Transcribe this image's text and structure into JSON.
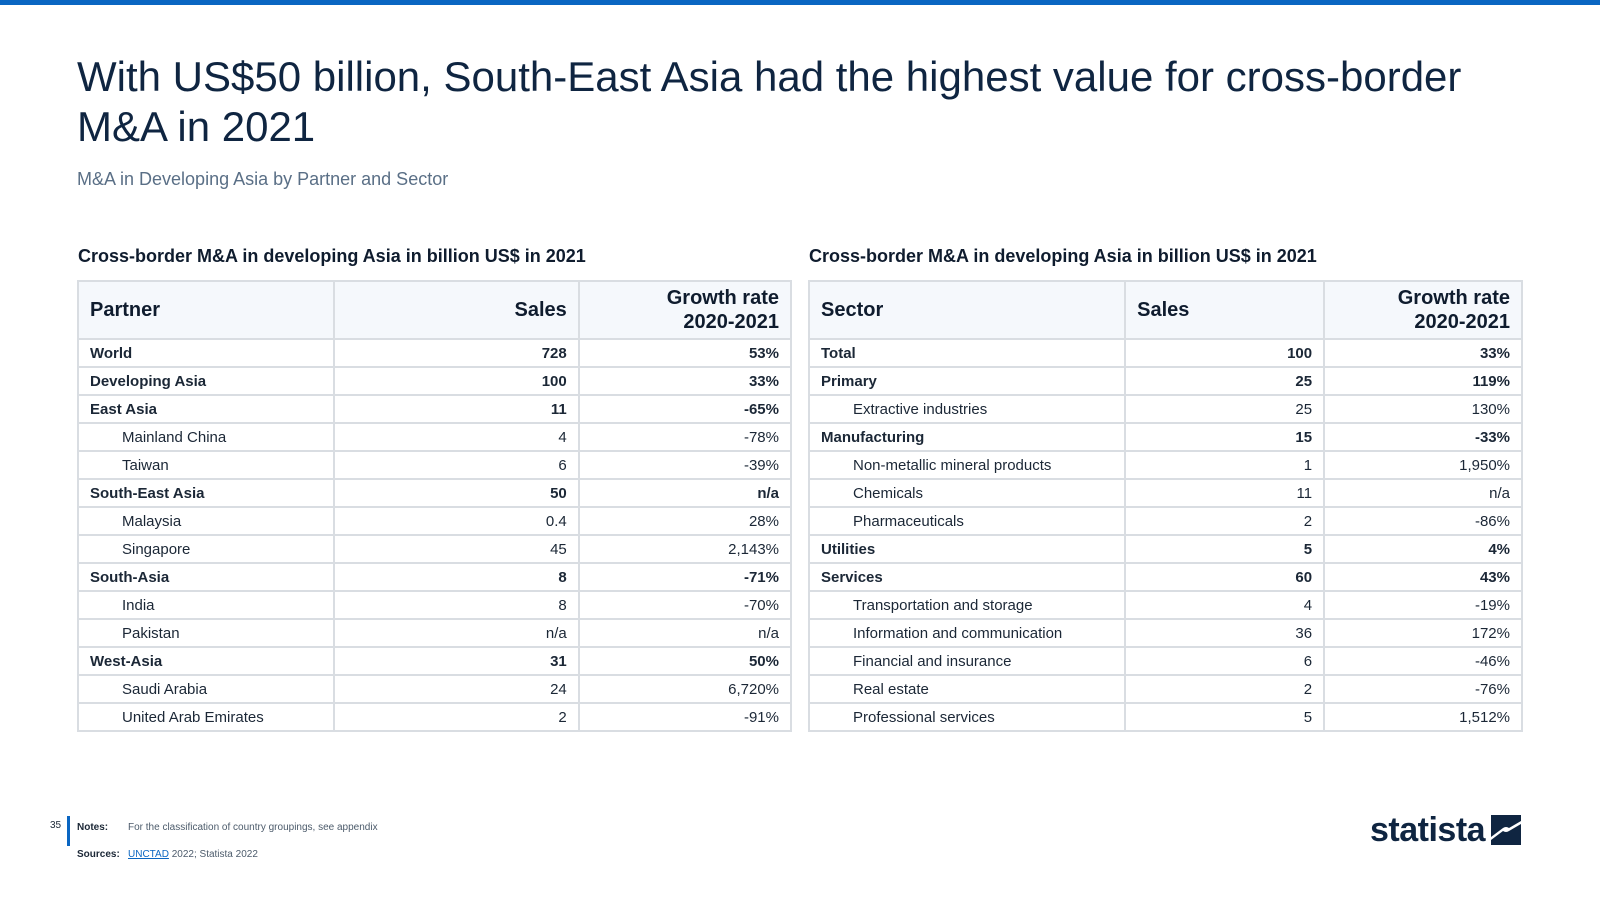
{
  "title": "With US$50 billion, South-East Asia had the highest value for cross-border M&A in 2021",
  "subtitle": "M&A in Developing Asia by Partner and Sector",
  "colors": {
    "accent": "#0a66c2",
    "header_bg": "#f5f8fc",
    "border": "#d9dde2",
    "text": "#0f1c2e"
  },
  "partner_table": {
    "heading": "Cross-border M&A in developing Asia in billion US$ in 2021",
    "headers": [
      "Partner",
      "Sales",
      "Growth rate\n2020-2021"
    ],
    "rows": [
      {
        "name": "World",
        "sales": "728",
        "growth": "53%",
        "bold": true
      },
      {
        "name": "Developing Asia",
        "sales": "100",
        "growth": "33%",
        "bold": true
      },
      {
        "name": "East Asia",
        "sales": "11",
        "growth": "-65%",
        "bold": true
      },
      {
        "name": "Mainland China",
        "sales": "4",
        "growth": "-78%",
        "bold": false
      },
      {
        "name": "Taiwan",
        "sales": "6",
        "growth": "-39%",
        "bold": false
      },
      {
        "name": "South-East Asia",
        "sales": "50",
        "growth": "n/a",
        "bold": true
      },
      {
        "name": "Malaysia",
        "sales": "0.4",
        "growth": "28%",
        "bold": false
      },
      {
        "name": "Singapore",
        "sales": "45",
        "growth": "2,143%",
        "bold": false
      },
      {
        "name": "South-Asia",
        "sales": "8",
        "growth": "-71%",
        "bold": true
      },
      {
        "name": "India",
        "sales": "8",
        "growth": "-70%",
        "bold": false
      },
      {
        "name": "Pakistan",
        "sales": "n/a",
        "growth": "n/a",
        "bold": false
      },
      {
        "name": "West-Asia",
        "sales": "31",
        "growth": "50%",
        "bold": true
      },
      {
        "name": "Saudi Arabia",
        "sales": "24",
        "growth": "6,720%",
        "bold": false
      },
      {
        "name": "United Arab Emirates",
        "sales": "2",
        "growth": "-91%",
        "bold": false
      }
    ]
  },
  "sector_table": {
    "heading": "Cross-border M&A in developing Asia in billion US$ in 2021",
    "headers": [
      "Sector",
      "Sales",
      "Growth rate\n2020-2021"
    ],
    "rows": [
      {
        "name": "Total",
        "sales": "100",
        "growth": "33%",
        "bold": true
      },
      {
        "name": "Primary",
        "sales": "25",
        "growth": "119%",
        "bold": true
      },
      {
        "name": "Extractive industries",
        "sales": "25",
        "growth": "130%",
        "bold": false
      },
      {
        "name": "Manufacturing",
        "sales": "15",
        "growth": "-33%",
        "bold": true
      },
      {
        "name": "Non-metallic mineral products",
        "sales": "1",
        "growth": "1,950%",
        "bold": false
      },
      {
        "name": "Chemicals",
        "sales": "11",
        "growth": "n/a",
        "bold": false
      },
      {
        "name": "Pharmaceuticals",
        "sales": "2",
        "growth": "-86%",
        "bold": false
      },
      {
        "name": "Utilities",
        "sales": "5",
        "growth": "4%",
        "bold": true
      },
      {
        "name": "Services",
        "sales": "60",
        "growth": "43%",
        "bold": true
      },
      {
        "name": "Transportation and storage",
        "sales": "4",
        "growth": "-19%",
        "bold": false
      },
      {
        "name": "Information and communication",
        "sales": "36",
        "growth": "172%",
        "bold": false
      },
      {
        "name": "Financial and insurance",
        "sales": "6",
        "growth": "-46%",
        "bold": false
      },
      {
        "name": "Real estate",
        "sales": "2",
        "growth": "-76%",
        "bold": false
      },
      {
        "name": "Professional services",
        "sales": "5",
        "growth": "1,512%",
        "bold": false
      }
    ]
  },
  "footer": {
    "page_number": "35",
    "notes_label": "Notes:",
    "notes_text": "For the classification of country groupings, see appendix",
    "sources_label": "Sources:",
    "sources_link": "UNCTAD",
    "sources_text": " 2022; Statista 2022"
  },
  "logo": {
    "word": "statista",
    "icon": "statista-logo-icon"
  }
}
